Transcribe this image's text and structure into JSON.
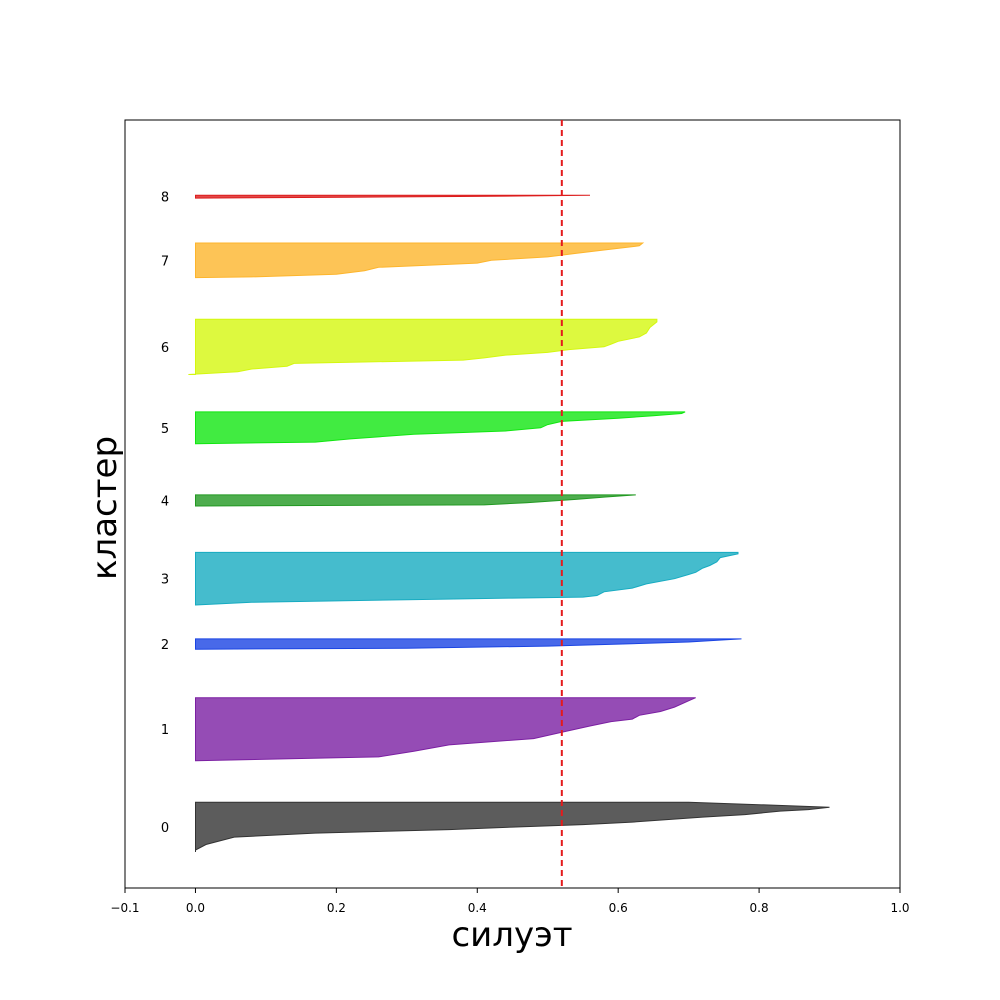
{
  "chart_data": {
    "type": "area",
    "title": "",
    "xlabel": "силуэт",
    "ylabel": "кластер",
    "xlim": [
      -0.1,
      1.0
    ],
    "xticks": [
      "−0.1",
      "0.0",
      "0.2",
      "0.4",
      "0.6",
      "0.8",
      "1.0"
    ],
    "xtick_values": [
      -0.1,
      0.0,
      0.2,
      0.4,
      0.6,
      0.8,
      1.0
    ],
    "grid": false,
    "average_line": {
      "value": 0.52,
      "color": "#e41a1c",
      "style": "dashed"
    },
    "clusters": [
      {
        "label": "0",
        "color": "#333333",
        "band": [
          0.0,
          0.072
        ],
        "profile": [
          [
            0.0,
            0.0
          ],
          [
            0.04,
            0.0
          ],
          [
            0.15,
            0.015
          ],
          [
            0.3,
            0.055
          ],
          [
            0.38,
            0.17
          ],
          [
            0.45,
            0.36
          ],
          [
            0.5,
            0.45
          ],
          [
            0.55,
            0.55
          ],
          [
            0.6,
            0.62
          ],
          [
            0.7,
            0.72
          ],
          [
            0.75,
            0.78
          ],
          [
            0.82,
            0.83
          ],
          [
            0.85,
            0.87
          ],
          [
            0.9,
            0.9
          ],
          [
            1.0,
            0.7
          ]
        ]
      },
      {
        "label": "1",
        "color": "#7b1fa2",
        "band": [
          0.132,
          0.223
        ],
        "profile": [
          [
            0.0,
            0.0
          ],
          [
            0.06,
            0.26
          ],
          [
            0.15,
            0.31
          ],
          [
            0.25,
            0.36
          ],
          [
            0.35,
            0.48
          ],
          [
            0.45,
            0.52
          ],
          [
            0.55,
            0.56
          ],
          [
            0.62,
            0.59
          ],
          [
            0.66,
            0.62
          ],
          [
            0.72,
            0.63
          ],
          [
            0.78,
            0.66
          ],
          [
            0.85,
            0.68
          ],
          [
            0.95,
            0.7
          ],
          [
            1.0,
            0.71
          ]
        ]
      },
      {
        "label": "2",
        "color": "#1a44e3",
        "band": [
          0.293,
          0.308
        ],
        "profile": [
          [
            0.0,
            0.0
          ],
          [
            0.1,
            0.3
          ],
          [
            0.3,
            0.5
          ],
          [
            0.5,
            0.6
          ],
          [
            0.7,
            0.7
          ],
          [
            0.9,
            0.75
          ],
          [
            1.0,
            0.775
          ]
        ]
      },
      {
        "label": "3",
        "color": "#17abc1",
        "band": [
          0.357,
          0.433
        ],
        "profile": [
          [
            0.0,
            0.0
          ],
          [
            0.05,
            0.08
          ],
          [
            0.1,
            0.3
          ],
          [
            0.13,
            0.45
          ],
          [
            0.15,
            0.55
          ],
          [
            0.18,
            0.57
          ],
          [
            0.25,
            0.58
          ],
          [
            0.32,
            0.62
          ],
          [
            0.4,
            0.64
          ],
          [
            0.5,
            0.68
          ],
          [
            0.58,
            0.7
          ],
          [
            0.62,
            0.71
          ],
          [
            0.7,
            0.72
          ],
          [
            0.75,
            0.73
          ],
          [
            0.82,
            0.74
          ],
          [
            0.9,
            0.745
          ],
          [
            0.97,
            0.77
          ],
          [
            1.0,
            0.77
          ]
        ]
      },
      {
        "label": "4",
        "color": "#229922",
        "band": [
          0.5,
          0.516
        ],
        "profile": [
          [
            0.0,
            0.0
          ],
          [
            0.1,
            0.41
          ],
          [
            0.3,
            0.47
          ],
          [
            0.6,
            0.54
          ],
          [
            0.8,
            0.58
          ],
          [
            1.0,
            0.625
          ]
        ]
      },
      {
        "label": "5",
        "color": "#11e611",
        "band": [
          0.59,
          0.636
        ],
        "profile": [
          [
            0.0,
            0.0
          ],
          [
            0.05,
            0.17
          ],
          [
            0.15,
            0.22
          ],
          [
            0.3,
            0.31
          ],
          [
            0.4,
            0.44
          ],
          [
            0.5,
            0.49
          ],
          [
            0.6,
            0.5
          ],
          [
            0.7,
            0.52
          ],
          [
            0.8,
            0.6
          ],
          [
            0.88,
            0.65
          ],
          [
            0.95,
            0.69
          ],
          [
            1.0,
            0.695
          ]
        ]
      },
      {
        "label": "6",
        "color": "#d4f70f",
        "band": [
          0.69,
          0.77
        ],
        "profile": [
          [
            0.0,
            -0.01
          ],
          [
            0.05,
            0.06
          ],
          [
            0.1,
            0.08
          ],
          [
            0.15,
            0.13
          ],
          [
            0.2,
            0.14
          ],
          [
            0.26,
            0.38
          ],
          [
            0.3,
            0.41
          ],
          [
            0.35,
            0.44
          ],
          [
            0.4,
            0.5
          ],
          [
            0.45,
            0.53
          ],
          [
            0.5,
            0.58
          ],
          [
            0.55,
            0.59
          ],
          [
            0.6,
            0.6
          ],
          [
            0.68,
            0.63
          ],
          [
            0.75,
            0.64
          ],
          [
            0.85,
            0.645
          ],
          [
            0.95,
            0.655
          ],
          [
            1.0,
            0.655
          ]
        ]
      },
      {
        "label": "7",
        "color": "#fdb52c",
        "band": [
          0.83,
          0.88
        ],
        "profile": [
          [
            0.0,
            0.0
          ],
          [
            0.02,
            0.08
          ],
          [
            0.1,
            0.2
          ],
          [
            0.2,
            0.24
          ],
          [
            0.3,
            0.26
          ],
          [
            0.42,
            0.4
          ],
          [
            0.5,
            0.42
          ],
          [
            0.6,
            0.5
          ],
          [
            0.7,
            0.54
          ],
          [
            0.8,
            0.58
          ],
          [
            0.92,
            0.63
          ],
          [
            1.0,
            0.635
          ]
        ]
      },
      {
        "label": "8",
        "color": "#dc1c1c",
        "band": [
          0.945,
          0.949
        ],
        "profile": [
          [
            0.0,
            0.0
          ],
          [
            0.3,
            0.22
          ],
          [
            0.6,
            0.4
          ],
          [
            1.0,
            0.56
          ]
        ]
      }
    ]
  }
}
